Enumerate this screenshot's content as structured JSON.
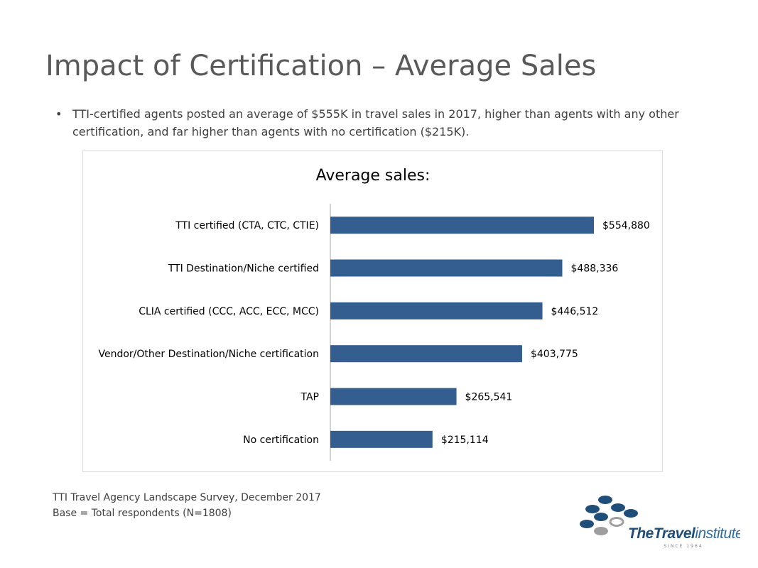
{
  "slide": {
    "title": "Impact of Certification – Average Sales",
    "bullet": "TTI-certified agents posted an average of $555K in travel sales in 2017, higher than agents with any other certification, and far higher than agents with no certification ($215K)."
  },
  "chart_data": {
    "type": "bar",
    "orientation": "horizontal",
    "title": "Average sales:",
    "xlabel": "",
    "ylabel": "",
    "categories": [
      "TTI certified (CTA, CTC, CTIE)",
      "TTI Destination/Niche certified",
      "CLIA certified (CCC, ACC, ECC, MCC)",
      "Vendor/Other Destination/Niche certification",
      "TAP",
      "No certification"
    ],
    "values": [
      554880,
      488336,
      446512,
      403775,
      265541,
      215114
    ],
    "data_labels": [
      "$554,880",
      "$488,336",
      "$446,512",
      "$403,775",
      "$265,541",
      "$215,114"
    ],
    "xlim": [
      0,
      600000
    ],
    "grid": false,
    "legend": "none",
    "bar_color": "#355e90"
  },
  "source": {
    "line1": "TTI Travel Agency Landscape Survey, December 2017",
    "line2": "Base = Total respondents (N=1808)"
  },
  "logo": {
    "text_the_travel": "TheTravel",
    "text_institute": "institute",
    "since": "SINCE 1964",
    "colors": {
      "navy": "#1f4e79",
      "blue": "#2e6da4",
      "gray": "#9e9e9e"
    }
  }
}
